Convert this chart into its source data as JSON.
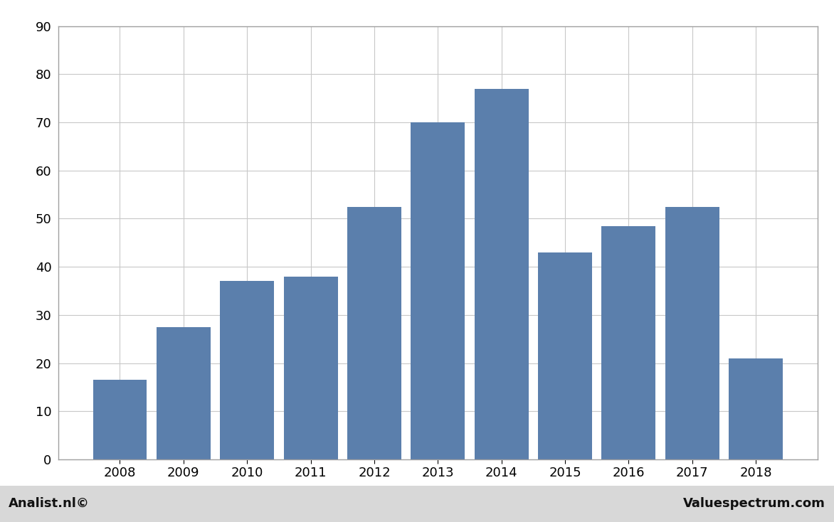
{
  "categories": [
    "2008",
    "2009",
    "2010",
    "2011",
    "2012",
    "2013",
    "2014",
    "2015",
    "2016",
    "2017",
    "2018"
  ],
  "values": [
    16.5,
    27.5,
    37.0,
    38.0,
    52.5,
    70.0,
    77.0,
    43.0,
    48.5,
    52.5,
    21.0
  ],
  "bar_color": "#5b7fac",
  "ylim": [
    0,
    90
  ],
  "yticks": [
    0,
    10,
    20,
    30,
    40,
    50,
    60,
    70,
    80,
    90
  ],
  "background_color": "#ffffff",
  "plot_area_color": "#ffffff",
  "grid_color": "#c8c8c8",
  "footer_left": "Analist.nl©",
  "footer_right": "Valuespectrum.com",
  "border_color": "#a0a0a0",
  "footer_bg_color": "#d8d8d8"
}
